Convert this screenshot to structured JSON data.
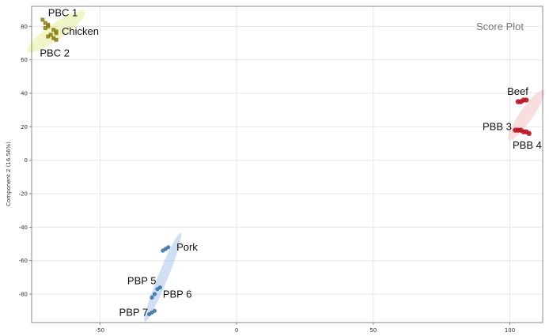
{
  "chart_data": {
    "type": "scatter",
    "title": "Score Plot",
    "xlabel": "",
    "ylabel": "Component 2 (16.56%)",
    "xlim": [
      -75,
      112
    ],
    "ylim": [
      -97,
      92
    ],
    "x_ticks": [
      -50,
      0,
      50,
      100
    ],
    "y_ticks": [
      80,
      60,
      40,
      20,
      0,
      -20,
      -40,
      -60,
      -80
    ],
    "grid": true,
    "colors": {
      "chicken": "#8a7a10",
      "chicken_band": "#e6ef9a",
      "beef": "#b81426",
      "beef_band": "#f2c2c2",
      "pork": "#2c6fa8",
      "pork_band": "#a9c6e8",
      "frame": "#888888",
      "grid": "#e6e6e6"
    },
    "groups": [
      {
        "name": "Chicken",
        "color": "#8a7a10",
        "band": "#e6ef9a",
        "ellipse": {
          "cx": -66,
          "cy": 77,
          "rx": 8,
          "ry": 2.5,
          "angle": -35
        },
        "points": [
          [
            -71,
            84
          ],
          [
            -70,
            82
          ],
          [
            -69,
            81
          ],
          [
            -69,
            80
          ],
          [
            -70,
            79
          ],
          [
            -67,
            78
          ],
          [
            -66,
            77
          ],
          [
            -66,
            76
          ],
          [
            -68,
            75
          ],
          [
            -69,
            74
          ],
          [
            -67,
            73
          ],
          [
            -66,
            72
          ]
        ]
      },
      {
        "name": "Beef",
        "color": "#b81426",
        "band": "#f2c2c2",
        "ellipse": {
          "cx": 106,
          "cy": 27,
          "rx": 7,
          "ry": 2,
          "angle": -55
        },
        "points": [
          [
            103,
            35
          ],
          [
            104,
            35
          ],
          [
            105,
            36
          ],
          [
            106,
            36
          ],
          [
            102,
            18
          ],
          [
            103,
            18
          ],
          [
            104,
            18
          ],
          [
            105,
            17
          ],
          [
            106,
            17
          ],
          [
            107,
            16
          ]
        ]
      },
      {
        "name": "Pork",
        "color": "#2c6fa8",
        "band": "#a9c6e8",
        "ellipse": {
          "cx": -27,
          "cy": -70,
          "rx": 11,
          "ry": 1.5,
          "angle": -68
        },
        "points": [
          [
            -25,
            -52
          ],
          [
            -26,
            -53
          ],
          [
            -27,
            -54
          ],
          [
            -28,
            -76
          ],
          [
            -29,
            -77
          ],
          [
            -30,
            -80
          ],
          [
            -31,
            -82
          ],
          [
            -30,
            -90
          ],
          [
            -31,
            -91
          ],
          [
            -32,
            -92
          ]
        ]
      }
    ],
    "labels": [
      {
        "text": "PBC 1",
        "x": -69,
        "y": 86
      },
      {
        "text": "Chicken",
        "x": -64,
        "y": 75
      },
      {
        "text": "PBC 2",
        "x": -72,
        "y": 62
      },
      {
        "text": "Beef",
        "x": 99,
        "y": 39
      },
      {
        "text": "PBB 3",
        "x": 90,
        "y": 18
      },
      {
        "text": "PBB 4",
        "x": 101,
        "y": 7
      },
      {
        "text": "Pork",
        "x": -22,
        "y": -54
      },
      {
        "text": "PBP 5",
        "x": -40,
        "y": -74
      },
      {
        "text": "PBP 6",
        "x": -27,
        "y": -82
      },
      {
        "text": "PBP 7",
        "x": -43,
        "y": -93
      }
    ]
  }
}
